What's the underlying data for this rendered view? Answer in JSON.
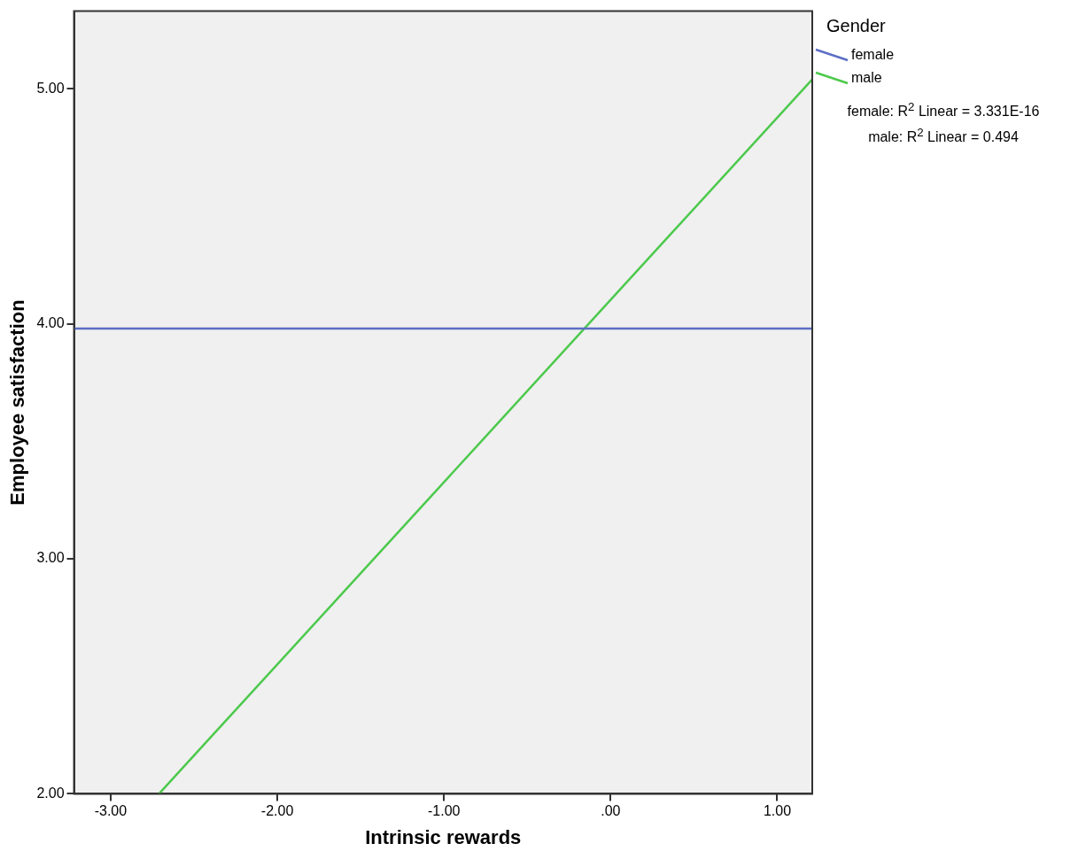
{
  "chart_data": {
    "type": "line",
    "xlabel": "Intrinsic rewards",
    "ylabel": "Employee satisfaction",
    "legend_title": "Gender",
    "series": [
      {
        "name": "female",
        "color": "#5b6ec4",
        "x": [
          -3.22,
          1.21
        ],
        "values": [
          3.98,
          3.98
        ]
      },
      {
        "name": "male",
        "color": "#4cc94c",
        "x": [
          -2.71,
          1.21
        ],
        "values": [
          2.0,
          5.04
        ]
      }
    ],
    "xlim": [
      -3.22,
      1.21
    ],
    "xticks": [
      {
        "value": -3,
        "label": "-3.00"
      },
      {
        "value": -2,
        "label": "-2.00"
      },
      {
        "value": -1,
        "label": "-1.00"
      },
      {
        "value": 0,
        "label": ".00"
      },
      {
        "value": 1,
        "label": "1.00"
      }
    ],
    "ylim": [
      2.0,
      5.33
    ],
    "yticks": [
      {
        "value": 2,
        "label": "2.00"
      },
      {
        "value": 3,
        "label": "3.00"
      },
      {
        "value": 4,
        "label": "4.00"
      },
      {
        "value": 5,
        "label": "5.00"
      }
    ],
    "annotations": [
      "female: R$^{2}$ Linear = 3.331E-16",
      "male: R$^{2}$ Linear = 0.494"
    ],
    "grid": false,
    "legend": "top right",
    "marker": "none",
    "line_style": "solid"
  }
}
